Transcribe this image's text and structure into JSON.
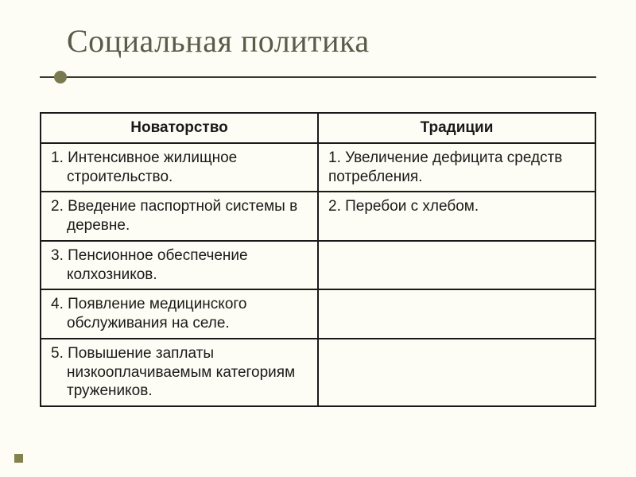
{
  "title": "Социальная политика",
  "accent_color": "#7a7a51",
  "rule_color": "#3b3b2d",
  "background_color": "#fdfdf5",
  "border_color": "#1a1a1a",
  "table": {
    "columns": [
      "Новаторство",
      "Традиции"
    ],
    "column_widths": [
      "50%",
      "50%"
    ],
    "header_fontsize": 19,
    "cell_fontsize": 19,
    "rows": [
      {
        "left": "1. Интенсивное жилищное строительство.",
        "right": "1. Увеличение дефицита средств потребления."
      },
      {
        "left": "2. Введение паспортной системы в деревне.",
        "right": "2. Перебои с хлебом."
      },
      {
        "left": "3. Пенсионное обеспечение колхозников.",
        "right": ""
      },
      {
        "left": "4. Появление медицинского обслуживания на селе.",
        "right": ""
      },
      {
        "left": "5. Повышение заплаты низкооплачиваемым категориям тружеников.",
        "right": ""
      }
    ]
  }
}
